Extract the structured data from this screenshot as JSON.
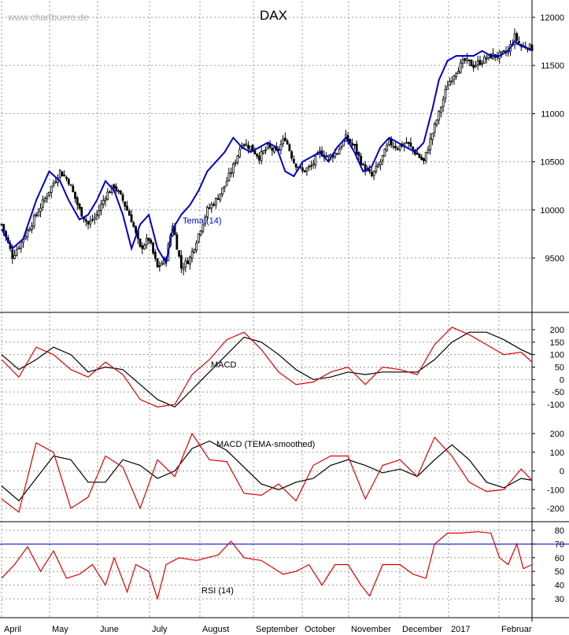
{
  "watermark": "www.chartbuero.de",
  "title": "DAX",
  "colors": {
    "candle": "#000000",
    "tema": "#0000cc",
    "macd": "#000000",
    "signal": "#dd0000",
    "rsi": "#dd0000",
    "rsi_ref": "#0000cc",
    "grid": "#999999"
  },
  "chart_data": [
    {
      "type": "candlestick",
      "title": "DAX",
      "series_label": "Tema (14)",
      "ylim": [
        9000,
        12150
      ],
      "yticks": [
        9500,
        10000,
        10500,
        11000,
        11500,
        12000
      ],
      "close_path": [
        [
          0,
          9850
        ],
        [
          5,
          9520
        ],
        [
          10,
          9700
        ],
        [
          16,
          9950
        ],
        [
          22,
          10200
        ],
        [
          27,
          10400
        ],
        [
          31,
          10300
        ],
        [
          36,
          10000
        ],
        [
          40,
          9850
        ],
        [
          44,
          9950
        ],
        [
          48,
          10150
        ],
        [
          52,
          10250
        ],
        [
          56,
          10100
        ],
        [
          60,
          9900
        ],
        [
          64,
          9600
        ],
        [
          68,
          9700
        ],
        [
          72,
          9400
        ],
        [
          76,
          9500
        ],
        [
          79,
          9850
        ],
        [
          83,
          9400
        ],
        [
          87,
          9500
        ],
        [
          91,
          9750
        ],
        [
          95,
          10000
        ],
        [
          99,
          10100
        ],
        [
          103,
          10250
        ],
        [
          107,
          10450
        ],
        [
          111,
          10700
        ],
        [
          115,
          10650
        ],
        [
          119,
          10550
        ],
        [
          123,
          10650
        ],
        [
          127,
          10600
        ],
        [
          131,
          10750
        ],
        [
          135,
          10500
        ],
        [
          139,
          10400
        ],
        [
          143,
          10450
        ],
        [
          147,
          10600
        ],
        [
          151,
          10550
        ],
        [
          155,
          10600
        ],
        [
          159,
          10750
        ],
        [
          163,
          10650
        ],
        [
          167,
          10450
        ],
        [
          171,
          10350
        ],
        [
          175,
          10500
        ],
        [
          179,
          10700
        ],
        [
          183,
          10650
        ],
        [
          187,
          10700
        ],
        [
          191,
          10600
        ],
        [
          195,
          10500
        ],
        [
          199,
          10800
        ],
        [
          202,
          11000
        ],
        [
          206,
          11300
        ],
        [
          210,
          11450
        ],
        [
          214,
          11550
        ],
        [
          218,
          11500
        ],
        [
          222,
          11550
        ],
        [
          226,
          11600
        ],
        [
          230,
          11600
        ],
        [
          234,
          11650
        ],
        [
          237,
          11800
        ],
        [
          240,
          11700
        ],
        [
          243,
          11700
        ],
        [
          245,
          11680
        ]
      ],
      "tema_path": [
        [
          0,
          9800
        ],
        [
          5,
          9600
        ],
        [
          10,
          9700
        ],
        [
          16,
          10100
        ],
        [
          22,
          10400
        ],
        [
          27,
          10300
        ],
        [
          31,
          10100
        ],
        [
          36,
          9900
        ],
        [
          40,
          9950
        ],
        [
          44,
          10100
        ],
        [
          48,
          10300
        ],
        [
          52,
          10200
        ],
        [
          56,
          9950
        ],
        [
          60,
          9600
        ],
        [
          64,
          9850
        ],
        [
          68,
          9950
        ],
        [
          72,
          9600
        ],
        [
          76,
          9450
        ],
        [
          79,
          9800
        ],
        [
          83,
          9950
        ],
        [
          87,
          10050
        ],
        [
          91,
          10200
        ],
        [
          95,
          10400
        ],
        [
          99,
          10500
        ],
        [
          103,
          10600
        ],
        [
          107,
          10750
        ],
        [
          111,
          10650
        ],
        [
          115,
          10600
        ],
        [
          119,
          10650
        ],
        [
          123,
          10700
        ],
        [
          127,
          10650
        ],
        [
          131,
          10400
        ],
        [
          135,
          10350
        ],
        [
          139,
          10500
        ],
        [
          143,
          10550
        ],
        [
          147,
          10600
        ],
        [
          151,
          10500
        ],
        [
          155,
          10650
        ],
        [
          159,
          10750
        ],
        [
          163,
          10600
        ],
        [
          167,
          10400
        ],
        [
          171,
          10450
        ],
        [
          175,
          10650
        ],
        [
          179,
          10750
        ],
        [
          183,
          10700
        ],
        [
          187,
          10650
        ],
        [
          191,
          10600
        ],
        [
          195,
          10700
        ],
        [
          199,
          11050
        ],
        [
          202,
          11350
        ],
        [
          206,
          11550
        ],
        [
          210,
          11600
        ],
        [
          214,
          11600
        ],
        [
          218,
          11600
        ],
        [
          222,
          11650
        ],
        [
          226,
          11600
        ],
        [
          230,
          11600
        ],
        [
          234,
          11650
        ],
        [
          237,
          11750
        ],
        [
          240,
          11700
        ],
        [
          243,
          11680
        ],
        [
          245,
          11660
        ]
      ]
    },
    {
      "type": "line",
      "title": "MACD",
      "ylim": [
        -150,
        250
      ],
      "yticks": [
        -100,
        -50,
        0,
        50,
        100,
        150,
        200
      ],
      "series": [
        {
          "color": "#000000",
          "values": [
            [
              0,
              100
            ],
            [
              8,
              40
            ],
            [
              16,
              80
            ],
            [
              24,
              130
            ],
            [
              32,
              100
            ],
            [
              40,
              30
            ],
            [
              48,
              50
            ],
            [
              56,
              40
            ],
            [
              64,
              -20
            ],
            [
              72,
              -80
            ],
            [
              80,
              -110
            ],
            [
              88,
              -40
            ],
            [
              96,
              30
            ],
            [
              104,
              100
            ],
            [
              112,
              170
            ],
            [
              120,
              150
            ],
            [
              128,
              100
            ],
            [
              136,
              40
            ],
            [
              144,
              0
            ],
            [
              152,
              10
            ],
            [
              160,
              30
            ],
            [
              168,
              20
            ],
            [
              176,
              30
            ],
            [
              184,
              30
            ],
            [
              192,
              30
            ],
            [
              200,
              80
            ],
            [
              208,
              150
            ],
            [
              216,
              190
            ],
            [
              224,
              190
            ],
            [
              232,
              160
            ],
            [
              240,
              120
            ],
            [
              245,
              100
            ]
          ]
        },
        {
          "color": "#dd0000",
          "values": [
            [
              0,
              80
            ],
            [
              8,
              10
            ],
            [
              16,
              130
            ],
            [
              24,
              100
            ],
            [
              32,
              40
            ],
            [
              40,
              10
            ],
            [
              48,
              70
            ],
            [
              56,
              20
            ],
            [
              64,
              -80
            ],
            [
              72,
              -110
            ],
            [
              80,
              -100
            ],
            [
              88,
              20
            ],
            [
              96,
              80
            ],
            [
              104,
              160
            ],
            [
              112,
              190
            ],
            [
              120,
              120
            ],
            [
              128,
              30
            ],
            [
              136,
              -20
            ],
            [
              144,
              -10
            ],
            [
              152,
              30
            ],
            [
              160,
              50
            ],
            [
              168,
              -20
            ],
            [
              176,
              50
            ],
            [
              184,
              40
            ],
            [
              192,
              20
            ],
            [
              200,
              140
            ],
            [
              208,
              210
            ],
            [
              216,
              180
            ],
            [
              224,
              140
            ],
            [
              232,
              100
            ],
            [
              240,
              110
            ],
            [
              245,
              70
            ]
          ]
        }
      ]
    },
    {
      "type": "line",
      "title": "MACD (TEMA-smoothed)",
      "ylim": [
        -250,
        250
      ],
      "yticks": [
        -200,
        -100,
        0,
        100,
        200
      ],
      "series": [
        {
          "color": "#000000",
          "values": [
            [
              0,
              -80
            ],
            [
              8,
              -160
            ],
            [
              16,
              -40
            ],
            [
              24,
              80
            ],
            [
              32,
              60
            ],
            [
              40,
              -60
            ],
            [
              48,
              -60
            ],
            [
              56,
              60
            ],
            [
              64,
              30
            ],
            [
              72,
              -40
            ],
            [
              80,
              0
            ],
            [
              88,
              120
            ],
            [
              96,
              160
            ],
            [
              104,
              110
            ],
            [
              112,
              20
            ],
            [
              120,
              -70
            ],
            [
              128,
              -100
            ],
            [
              136,
              -60
            ],
            [
              144,
              -40
            ],
            [
              152,
              30
            ],
            [
              160,
              60
            ],
            [
              168,
              30
            ],
            [
              176,
              -10
            ],
            [
              184,
              10
            ],
            [
              192,
              -30
            ],
            [
              200,
              60
            ],
            [
              208,
              140
            ],
            [
              216,
              60
            ],
            [
              224,
              -60
            ],
            [
              232,
              -90
            ],
            [
              240,
              -40
            ],
            [
              245,
              -50
            ]
          ]
        },
        {
          "color": "#dd0000",
          "values": [
            [
              0,
              -150
            ],
            [
              8,
              -220
            ],
            [
              16,
              150
            ],
            [
              24,
              100
            ],
            [
              32,
              -200
            ],
            [
              40,
              -140
            ],
            [
              48,
              80
            ],
            [
              56,
              20
            ],
            [
              64,
              -200
            ],
            [
              72,
              60
            ],
            [
              80,
              -30
            ],
            [
              88,
              200
            ],
            [
              96,
              60
            ],
            [
              104,
              50
            ],
            [
              112,
              -120
            ],
            [
              120,
              -130
            ],
            [
              128,
              -70
            ],
            [
              136,
              -160
            ],
            [
              144,
              30
            ],
            [
              152,
              80
            ],
            [
              160,
              80
            ],
            [
              168,
              -150
            ],
            [
              176,
              30
            ],
            [
              184,
              60
            ],
            [
              192,
              -30
            ],
            [
              200,
              180
            ],
            [
              208,
              80
            ],
            [
              216,
              -60
            ],
            [
              224,
              -110
            ],
            [
              232,
              -100
            ],
            [
              240,
              10
            ],
            [
              245,
              -50
            ]
          ]
        }
      ]
    },
    {
      "type": "line",
      "title": "RSI (14)",
      "ylim": [
        25,
        85
      ],
      "yticks": [
        30,
        40,
        50,
        60,
        70,
        80
      ],
      "reference": 70,
      "series": [
        {
          "color": "#dd0000",
          "values": [
            [
              0,
              45
            ],
            [
              6,
              55
            ],
            [
              12,
              68
            ],
            [
              18,
              50
            ],
            [
              24,
              65
            ],
            [
              30,
              45
            ],
            [
              36,
              48
            ],
            [
              42,
              55
            ],
            [
              48,
              40
            ],
            [
              52,
              60
            ],
            [
              58,
              35
            ],
            [
              62,
              55
            ],
            [
              68,
              50
            ],
            [
              72,
              30
            ],
            [
              76,
              55
            ],
            [
              82,
              60
            ],
            [
              90,
              58
            ],
            [
              100,
              62
            ],
            [
              106,
              72
            ],
            [
              112,
              60
            ],
            [
              120,
              58
            ],
            [
              130,
              48
            ],
            [
              136,
              50
            ],
            [
              142,
              55
            ],
            [
              148,
              40
            ],
            [
              154,
              55
            ],
            [
              160,
              55
            ],
            [
              166,
              40
            ],
            [
              170,
              32
            ],
            [
              176,
              55
            ],
            [
              184,
              55
            ],
            [
              190,
              48
            ],
            [
              196,
              45
            ],
            [
              200,
              70
            ],
            [
              206,
              78
            ],
            [
              212,
              78
            ],
            [
              220,
              79
            ],
            [
              226,
              78
            ],
            [
              230,
              60
            ],
            [
              234,
              55
            ],
            [
              238,
              70
            ],
            [
              241,
              52
            ],
            [
              245,
              55
            ]
          ]
        }
      ]
    }
  ],
  "x_axis": {
    "labels": [
      "April",
      "May",
      "June",
      "July",
      "August",
      "September",
      "October",
      "November",
      "December",
      "2017",
      "Februar"
    ]
  }
}
